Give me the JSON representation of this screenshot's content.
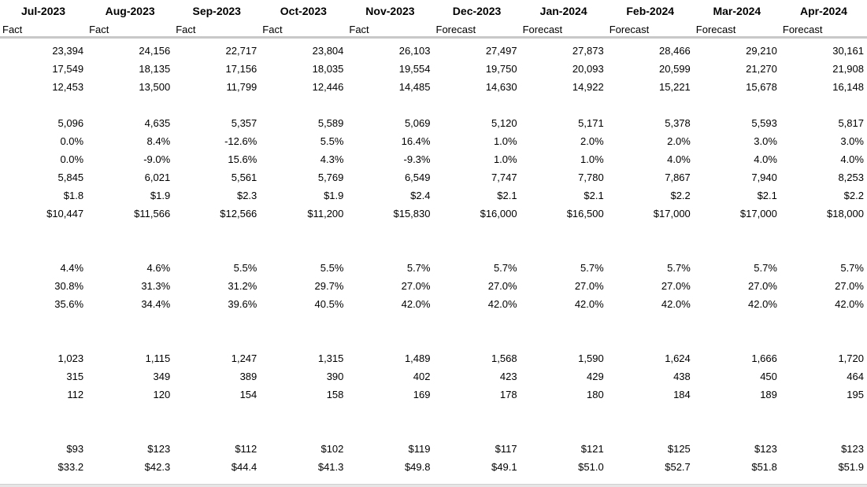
{
  "columns": [
    {
      "month": "Jul-2023",
      "kind": "Fact"
    },
    {
      "month": "Aug-2023",
      "kind": "Fact"
    },
    {
      "month": "Sep-2023",
      "kind": "Fact"
    },
    {
      "month": "Oct-2023",
      "kind": "Fact"
    },
    {
      "month": "Nov-2023",
      "kind": "Fact"
    },
    {
      "month": "Dec-2023",
      "kind": "Forecast"
    },
    {
      "month": "Jan-2024",
      "kind": "Forecast"
    },
    {
      "month": "Feb-2024",
      "kind": "Forecast"
    },
    {
      "month": "Mar-2024",
      "kind": "Forecast"
    },
    {
      "month": "Apr-2024",
      "kind": "Forecast"
    }
  ],
  "groups": [
    [
      [
        "23,394",
        "24,156",
        "22,717",
        "23,804",
        "26,103",
        "27,497",
        "27,873",
        "28,466",
        "29,210",
        "30,161"
      ],
      [
        "17,549",
        "18,135",
        "17,156",
        "18,035",
        "19,554",
        "19,750",
        "20,093",
        "20,599",
        "21,270",
        "21,908"
      ],
      [
        "12,453",
        "13,500",
        "11,799",
        "12,446",
        "14,485",
        "14,630",
        "14,922",
        "15,221",
        "15,678",
        "16,148"
      ]
    ],
    [
      [
        "5,096",
        "4,635",
        "5,357",
        "5,589",
        "5,069",
        "5,120",
        "5,171",
        "5,378",
        "5,593",
        "5,817"
      ],
      [
        "0.0%",
        "8.4%",
        "-12.6%",
        "5.5%",
        "16.4%",
        "1.0%",
        "2.0%",
        "2.0%",
        "3.0%",
        "3.0%"
      ],
      [
        "0.0%",
        "-9.0%",
        "15.6%",
        "4.3%",
        "-9.3%",
        "1.0%",
        "1.0%",
        "4.0%",
        "4.0%",
        "4.0%"
      ],
      [
        "5,845",
        "6,021",
        "5,561",
        "5,769",
        "6,549",
        "7,747",
        "7,780",
        "7,867",
        "7,940",
        "8,253"
      ],
      [
        "$1.8",
        "$1.9",
        "$2.3",
        "$1.9",
        "$2.4",
        "$2.1",
        "$2.1",
        "$2.2",
        "$2.1",
        "$2.2"
      ],
      [
        "$10,447",
        "$11,566",
        "$12,566",
        "$11,200",
        "$15,830",
        "$16,000",
        "$16,500",
        "$17,000",
        "$17,000",
        "$18,000"
      ]
    ],
    [
      [
        "4.4%",
        "4.6%",
        "5.5%",
        "5.5%",
        "5.7%",
        "5.7%",
        "5.7%",
        "5.7%",
        "5.7%",
        "5.7%"
      ],
      [
        "30.8%",
        "31.3%",
        "31.2%",
        "29.7%",
        "27.0%",
        "27.0%",
        "27.0%",
        "27.0%",
        "27.0%",
        "27.0%"
      ],
      [
        "35.6%",
        "34.4%",
        "39.6%",
        "40.5%",
        "42.0%",
        "42.0%",
        "42.0%",
        "42.0%",
        "42.0%",
        "42.0%"
      ]
    ],
    [
      [
        "1,023",
        "1,115",
        "1,247",
        "1,315",
        "1,489",
        "1,568",
        "1,590",
        "1,624",
        "1,666",
        "1,720"
      ],
      [
        "315",
        "349",
        "389",
        "390",
        "402",
        "423",
        "429",
        "438",
        "450",
        "464"
      ],
      [
        "112",
        "120",
        "154",
        "158",
        "169",
        "178",
        "180",
        "184",
        "189",
        "195"
      ]
    ],
    [
      [
        "$93",
        "$123",
        "$112",
        "$102",
        "$119",
        "$117",
        "$121",
        "$125",
        "$123",
        "$123"
      ],
      [
        "$33.2",
        "$42.3",
        "$44.4",
        "$41.3",
        "$49.8",
        "$49.1",
        "$51.0",
        "$52.7",
        "$51.8",
        "$51.9"
      ]
    ]
  ]
}
